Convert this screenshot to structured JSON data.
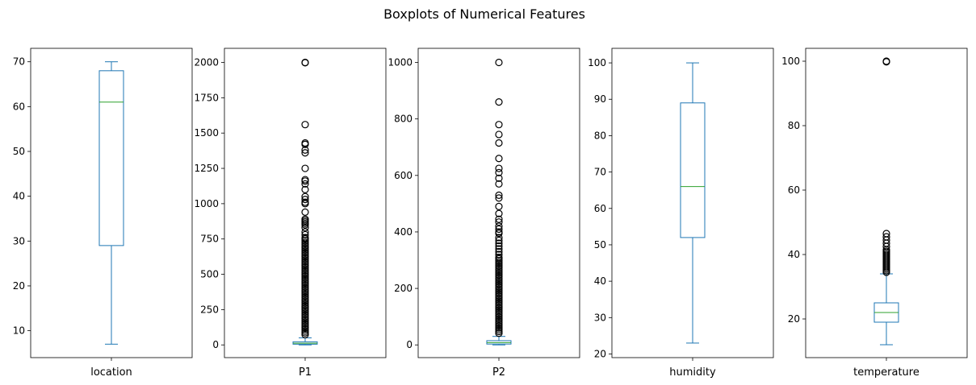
{
  "figure_title": "Boxplots of Numerical Features",
  "box_color": "#1f77b4",
  "median_color": "#2ca02c",
  "flier_color": "#000000",
  "chart_data": [
    {
      "type": "box",
      "category": "location",
      "ylim": [
        4,
        73
      ],
      "yticks": [
        10,
        20,
        30,
        40,
        50,
        60,
        70
      ],
      "whisker_low": 7,
      "q1": 29,
      "median": 61,
      "q3": 68,
      "whisker_high": 70,
      "outliers": []
    },
    {
      "type": "box",
      "category": "P1",
      "ylim": [
        -90,
        2100
      ],
      "yticks": [
        0,
        250,
        500,
        750,
        1000,
        1250,
        1500,
        1750,
        2000
      ],
      "whisker_low": 0,
      "q1": 5,
      "median": 12,
      "q3": 22,
      "whisker_high": 50,
      "outliers": [
        2000,
        1998,
        1560,
        1430,
        1420,
        1380,
        1360,
        1250,
        1170,
        1160,
        1140,
        1100,
        1050,
        1030,
        1010,
        1000,
        940,
        890,
        880,
        870,
        860,
        850,
        830,
        800,
        780,
        760
      ]
    },
    {
      "type": "box",
      "category": "P2",
      "ylim": [
        -45,
        1050
      ],
      "yticks": [
        0,
        200,
        400,
        600,
        800,
        1000
      ],
      "whisker_low": 0,
      "q1": 3,
      "median": 8,
      "q3": 15,
      "whisker_high": 30,
      "outliers": [
        1000,
        860,
        780,
        745,
        715,
        660,
        625,
        610,
        590,
        570,
        530,
        520,
        490,
        465,
        445,
        435,
        420,
        410,
        400,
        395,
        380,
        370,
        360,
        350,
        340,
        330,
        320,
        310
      ]
    },
    {
      "type": "box",
      "category": "humidity",
      "ylim": [
        19,
        104
      ],
      "yticks": [
        20,
        30,
        40,
        50,
        60,
        70,
        80,
        90,
        100
      ],
      "whisker_low": 23,
      "q1": 52,
      "median": 66,
      "q3": 89,
      "whisker_high": 100,
      "outliers": []
    },
    {
      "type": "box",
      "category": "temperature",
      "ylim": [
        8,
        104
      ],
      "yticks": [
        20,
        40,
        60,
        80,
        100
      ],
      "whisker_low": 12,
      "q1": 19,
      "median": 22,
      "q3": 25,
      "whisker_high": 34,
      "outliers": [
        100,
        99.8,
        46.5,
        45.5,
        44.5,
        43.5,
        42.5,
        41.5,
        41,
        40.5,
        40,
        39.5,
        39,
        38.5,
        38,
        37.5,
        37,
        36.5,
        36,
        35.5,
        35,
        34.5
      ]
    }
  ]
}
